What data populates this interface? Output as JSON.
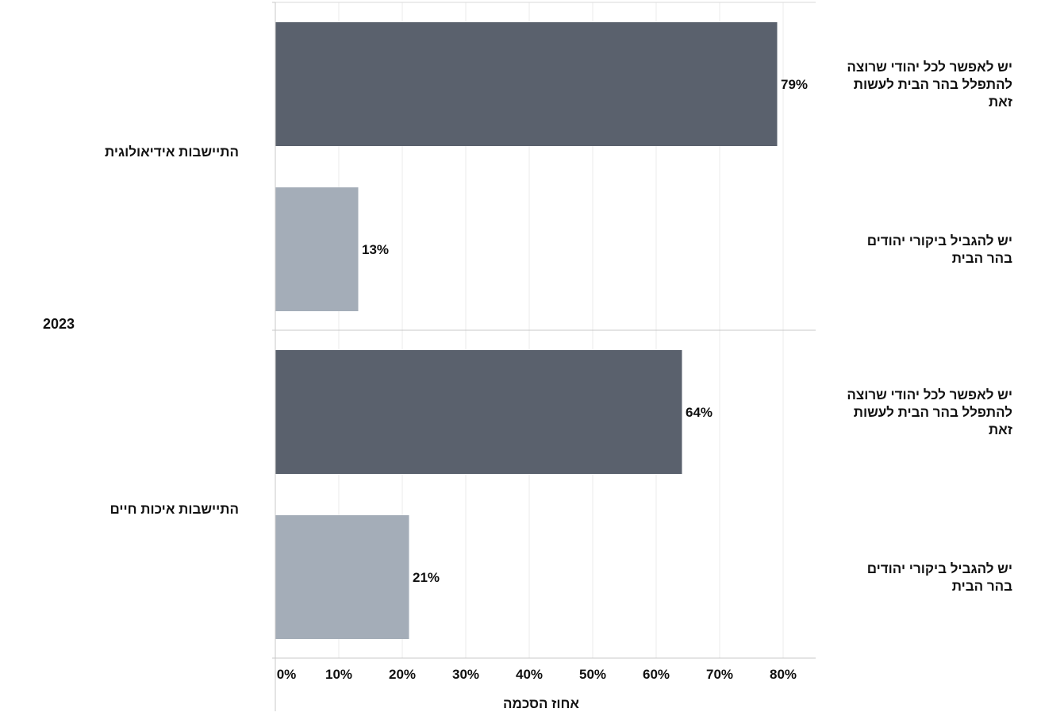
{
  "chart_data": {
    "type": "bar",
    "orientation": "horizontal",
    "year_label": "2023",
    "xlabel": "אחוז הסכמה",
    "xlim": [
      0,
      85
    ],
    "x_ticks": [
      0,
      10,
      20,
      30,
      40,
      50,
      60,
      70,
      80
    ],
    "x_tick_labels": [
      "0%",
      "10%",
      "20%",
      "30%",
      "40%",
      "50%",
      "60%",
      "70%",
      "80%"
    ],
    "grid": true,
    "categories": [
      "יש לאפשר לכל יהודי שרוצה להתפלל בהר הבית לעשות זאת",
      "יש להגביל ביקורי יהודים בהר הבית"
    ],
    "groups": [
      {
        "label": "התיישבות אידיאולוגית",
        "bars": [
          {
            "category_lines": [
              "יש לאפשר לכל יהודי שרוצה",
              "להתפלל בהר הבית לעשות",
              "זאת"
            ],
            "value": 79,
            "value_label": "79%",
            "color": "#5a616d"
          },
          {
            "category_lines": [
              "יש להגביל ביקורי יהודים",
              "בהר הבית"
            ],
            "value": 13,
            "value_label": "13%",
            "color": "#a4adb8"
          }
        ]
      },
      {
        "label": "התיישבות איכות חיים",
        "bars": [
          {
            "category_lines": [
              "יש לאפשר לכל יהודי שרוצה",
              "להתפלל בהר הבית לעשות",
              "זאת"
            ],
            "value": 64,
            "value_label": "64%",
            "color": "#5a616d"
          },
          {
            "category_lines": [
              "יש להגביל ביקורי יהודים",
              "בהר הבית"
            ],
            "value": 21,
            "value_label": "21%",
            "color": "#a4adb8"
          }
        ]
      }
    ]
  }
}
